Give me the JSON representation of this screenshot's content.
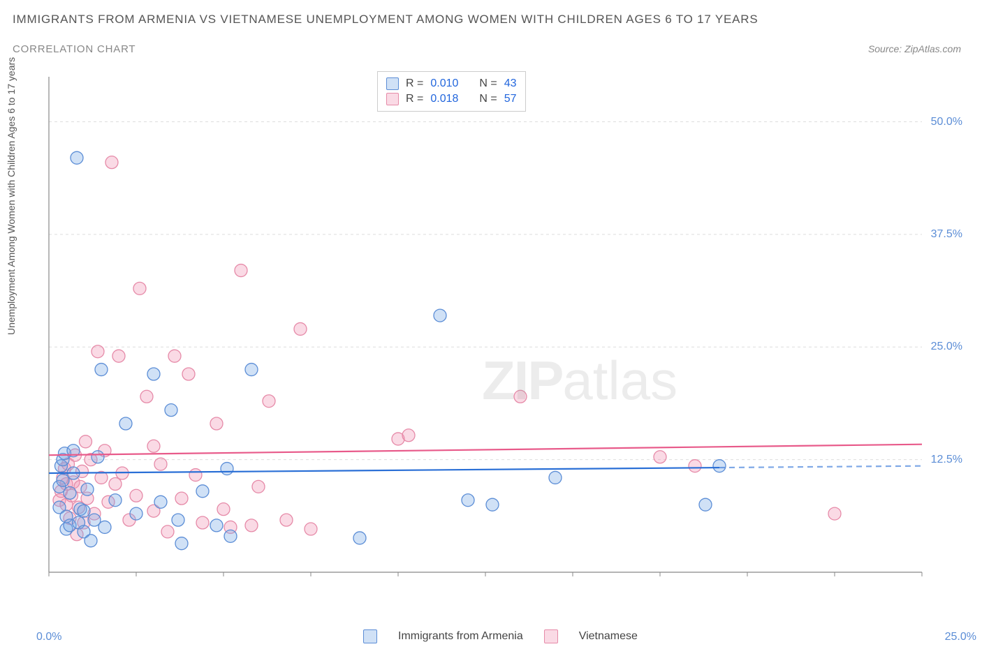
{
  "title": "IMMIGRANTS FROM ARMENIA VS VIETNAMESE UNEMPLOYMENT AMONG WOMEN WITH CHILDREN AGES 6 TO 17 YEARS",
  "subtitle": "CORRELATION CHART",
  "source": "Source: ZipAtlas.com",
  "y_axis_label": "Unemployment Among Women with Children Ages 6 to 17 years",
  "watermark": {
    "part1": "ZIP",
    "part2": "atlas"
  },
  "chart": {
    "type": "scatter",
    "xlim": [
      0,
      25
    ],
    "ylim": [
      0,
      55
    ],
    "x_ticks_minor": [
      0,
      2.5,
      5,
      7.5,
      10,
      12.5,
      15,
      17.5,
      20,
      22.5,
      25
    ],
    "y_gridlines": [
      12.5,
      25,
      37.5,
      50
    ],
    "y_tick_labels": [
      "12.5%",
      "25.0%",
      "37.5%",
      "50.0%"
    ],
    "x_tick_left": "0.0%",
    "x_tick_right": "25.0%",
    "background_color": "#ffffff",
    "grid_color": "#dddddd",
    "axis_color": "#888888",
    "marker_radius": 9,
    "marker_stroke_width": 1.3,
    "series": [
      {
        "name": "Immigrants from Armenia",
        "fill_color": "rgba(120,170,230,0.35)",
        "stroke_color": "#5b8dd6",
        "line_color": "#2a6fd6",
        "R": "0.010",
        "N": "43",
        "trend": {
          "y_start": 11.0,
          "y_end": 11.8,
          "x_solid_end": 19.2
        },
        "points": [
          [
            0.3,
            7.2
          ],
          [
            0.3,
            9.5
          ],
          [
            0.35,
            11.8
          ],
          [
            0.4,
            12.5
          ],
          [
            0.4,
            10.2
          ],
          [
            0.45,
            13.2
          ],
          [
            0.5,
            4.8
          ],
          [
            0.5,
            6.2
          ],
          [
            0.6,
            5.2
          ],
          [
            0.6,
            8.8
          ],
          [
            0.7,
            11.0
          ],
          [
            0.7,
            13.5
          ],
          [
            0.8,
            46.0
          ],
          [
            0.85,
            5.5
          ],
          [
            0.9,
            7.0
          ],
          [
            1.0,
            4.5
          ],
          [
            1.0,
            6.8
          ],
          [
            1.1,
            9.2
          ],
          [
            1.2,
            3.5
          ],
          [
            1.3,
            5.8
          ],
          [
            1.4,
            12.8
          ],
          [
            1.5,
            22.5
          ],
          [
            1.6,
            5.0
          ],
          [
            1.9,
            8.0
          ],
          [
            2.2,
            16.5
          ],
          [
            2.5,
            6.5
          ],
          [
            3.0,
            22.0
          ],
          [
            3.2,
            7.8
          ],
          [
            3.5,
            18.0
          ],
          [
            3.7,
            5.8
          ],
          [
            3.8,
            3.2
          ],
          [
            4.4,
            9.0
          ],
          [
            4.8,
            5.2
          ],
          [
            5.1,
            11.5
          ],
          [
            5.2,
            4.0
          ],
          [
            5.8,
            22.5
          ],
          [
            8.9,
            3.8
          ],
          [
            11.2,
            28.5
          ],
          [
            12.0,
            8.0
          ],
          [
            12.7,
            7.5
          ],
          [
            14.5,
            10.5
          ],
          [
            18.8,
            7.5
          ],
          [
            19.2,
            11.8
          ]
        ]
      },
      {
        "name": "Vietnamese",
        "fill_color": "rgba(240,150,180,0.35)",
        "stroke_color": "#e68aa8",
        "line_color": "#e85a8a",
        "R": "0.018",
        "N": "57",
        "trend": {
          "y_start": 13.0,
          "y_end": 14.2,
          "x_solid_end": 25
        },
        "points": [
          [
            0.3,
            8.0
          ],
          [
            0.35,
            9.0
          ],
          [
            0.4,
            10.5
          ],
          [
            0.45,
            11.5
          ],
          [
            0.5,
            7.5
          ],
          [
            0.5,
            9.8
          ],
          [
            0.55,
            12.0
          ],
          [
            0.6,
            6.0
          ],
          [
            0.65,
            8.5
          ],
          [
            0.7,
            10.0
          ],
          [
            0.75,
            13.0
          ],
          [
            0.8,
            4.2
          ],
          [
            0.85,
            7.2
          ],
          [
            0.9,
            9.5
          ],
          [
            0.95,
            11.2
          ],
          [
            1.0,
            5.5
          ],
          [
            1.1,
            8.2
          ],
          [
            1.2,
            12.5
          ],
          [
            1.3,
            6.5
          ],
          [
            1.4,
            24.5
          ],
          [
            1.5,
            10.5
          ],
          [
            1.6,
            13.5
          ],
          [
            1.7,
            7.8
          ],
          [
            1.8,
            45.5
          ],
          [
            1.9,
            9.8
          ],
          [
            2.0,
            24.0
          ],
          [
            2.1,
            11.0
          ],
          [
            2.3,
            5.8
          ],
          [
            2.5,
            8.5
          ],
          [
            2.6,
            31.5
          ],
          [
            2.8,
            19.5
          ],
          [
            3.0,
            6.8
          ],
          [
            3.2,
            12.0
          ],
          [
            3.4,
            4.5
          ],
          [
            3.6,
            24.0
          ],
          [
            3.8,
            8.2
          ],
          [
            4.0,
            22.0
          ],
          [
            4.2,
            10.8
          ],
          [
            4.4,
            5.5
          ],
          [
            4.8,
            16.5
          ],
          [
            5.0,
            7.0
          ],
          [
            5.2,
            5.0
          ],
          [
            5.5,
            33.5
          ],
          [
            5.8,
            5.2
          ],
          [
            6.0,
            9.5
          ],
          [
            6.3,
            19.0
          ],
          [
            6.8,
            5.8
          ],
          [
            7.2,
            27.0
          ],
          [
            7.5,
            4.8
          ],
          [
            10.0,
            14.8
          ],
          [
            10.3,
            15.2
          ],
          [
            13.5,
            19.5
          ],
          [
            17.5,
            12.8
          ],
          [
            18.5,
            11.8
          ],
          [
            22.5,
            6.5
          ],
          [
            3.0,
            14.0
          ],
          [
            1.05,
            14.5
          ]
        ]
      }
    ]
  },
  "legend": {
    "series1_label": "Immigrants from Armenia",
    "series2_label": "Vietnamese"
  }
}
